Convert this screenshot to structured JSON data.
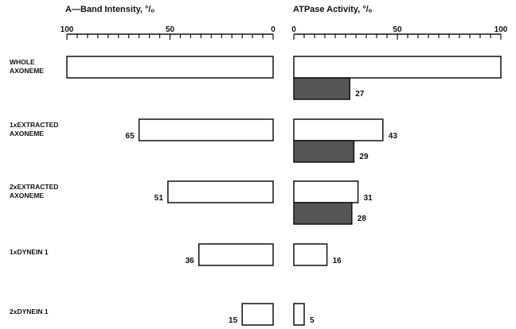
{
  "chart_data": [
    {
      "type": "bar",
      "orientation": "horizontal-reversed",
      "title": "A—Band  Intensity, °/ₒ",
      "xlim": [
        100,
        0
      ],
      "ticks": [
        "100",
        "50",
        "0"
      ],
      "categories": [
        "WHOLE AXONEME",
        "1xEXTRACTED AXONEME",
        "2xEXTRACTED AXONEME",
        "1xDYNEIN 1",
        "2xDYNEIN 1"
      ],
      "values": [
        100,
        65,
        51,
        36,
        15
      ],
      "value_labels": [
        "",
        "65",
        "51",
        "36",
        "15"
      ]
    },
    {
      "type": "bar",
      "orientation": "horizontal",
      "title": "ATPase  Activity, °/ₒ",
      "xlim": [
        0,
        100
      ],
      "ticks": [
        "0",
        "50",
        "100"
      ],
      "categories": [
        "WHOLE AXONEME",
        "1xEXTRACTED AXONEME",
        "2xEXTRACTED AXONEME",
        "1xDYNEIN 1",
        "2xDYNEIN 1"
      ],
      "series": [
        {
          "values": [
            100,
            43,
            31,
            16,
            5
          ],
          "value_labels": [
            "",
            "43",
            "31",
            "16",
            "5"
          ],
          "color": "#ffffff"
        },
        {
          "values": [
            27,
            29,
            28,
            null,
            null
          ],
          "value_labels": [
            "27",
            "29",
            "28",
            "",
            ""
          ],
          "color": "#555555"
        }
      ]
    }
  ],
  "row_labels": [
    [
      "WHOLE",
      "AXONEME"
    ],
    [
      "1xEXTRACTED",
      "AXONEME"
    ],
    [
      "2xEXTRACTED",
      "AXONEME"
    ],
    [
      "1xDYNEIN 1"
    ],
    [
      "2xDYNEIN 1"
    ]
  ]
}
